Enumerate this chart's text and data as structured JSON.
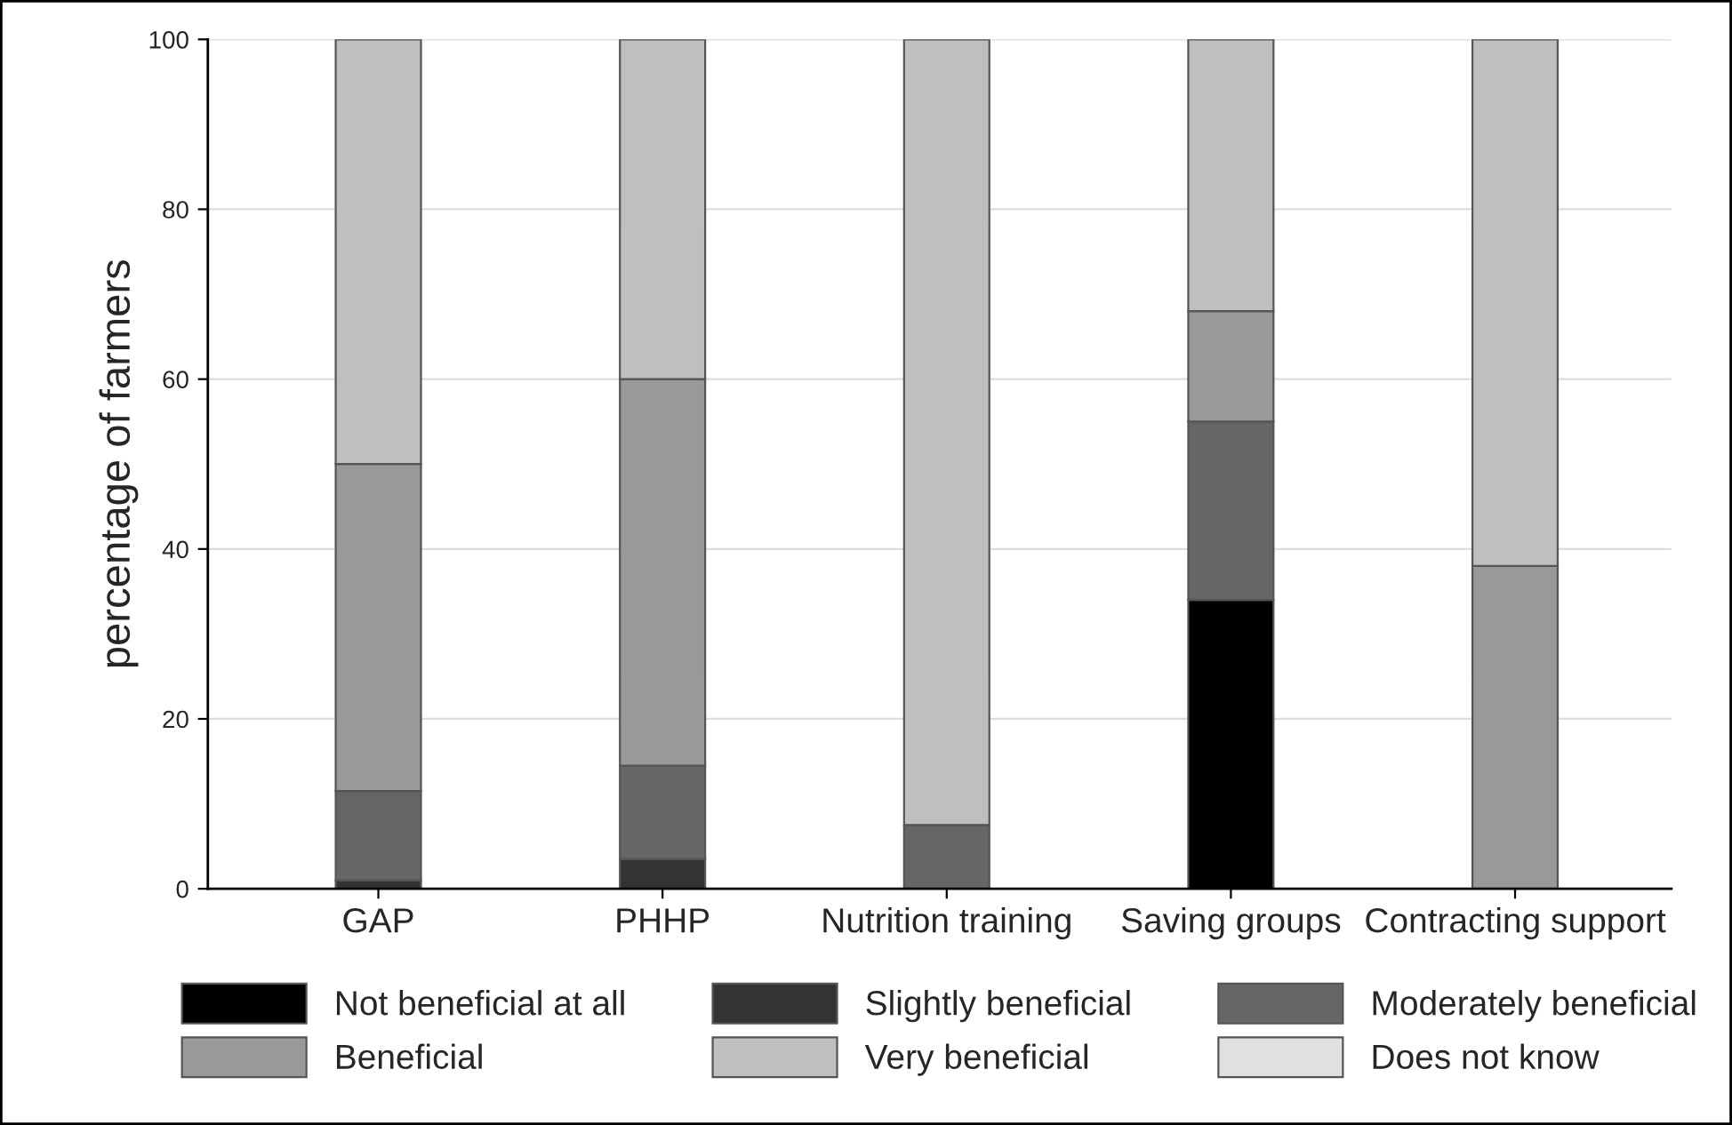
{
  "chart_data": {
    "type": "bar",
    "stacked": true,
    "ylabel": "percentage of farmers",
    "categories": [
      "GAP",
      "PHHP",
      "Nutrition training",
      "Saving groups",
      "Contracting support"
    ],
    "series": [
      {
        "name": "Not beneficial at all",
        "color": "#000000",
        "values": [
          0,
          0,
          0,
          34,
          0
        ]
      },
      {
        "name": "Slightly beneficial",
        "color": "#333333",
        "values": [
          1,
          3.5,
          0,
          0,
          0
        ]
      },
      {
        "name": "Moderately beneficial",
        "color": "#666666",
        "values": [
          10.5,
          11,
          7.5,
          21,
          0
        ]
      },
      {
        "name": "Beneficial",
        "color": "#999999",
        "values": [
          38.5,
          45.5,
          0,
          13,
          38
        ]
      },
      {
        "name": "Very beneficial",
        "color": "#bfbfbf",
        "values": [
          50,
          40,
          92.5,
          32,
          62
        ]
      },
      {
        "name": "Does not know",
        "color": "#e0e0e0",
        "values": [
          0,
          0,
          0,
          0,
          0
        ]
      }
    ],
    "ylim": [
      0,
      100
    ],
    "yticks": [
      0,
      20,
      40,
      60,
      80,
      100
    ],
    "grid": "y",
    "legend": "bottom"
  }
}
